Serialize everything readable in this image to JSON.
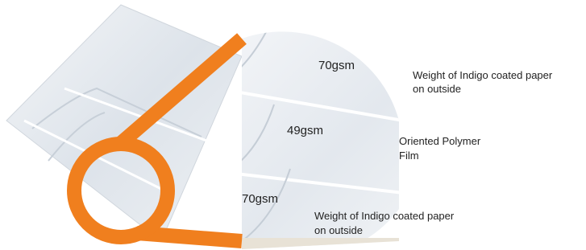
{
  "layers": [
    {
      "weight": "70gsm",
      "label": [
        "Weight of Indigo coated paper",
        "on outside"
      ]
    },
    {
      "weight": "49gsm",
      "label": [
        "Oriented Polymer",
        "Film"
      ]
    },
    {
      "weight": "70gsm",
      "label": [
        "Weight of Indigo coated paper",
        "on outside"
      ]
    }
  ]
}
